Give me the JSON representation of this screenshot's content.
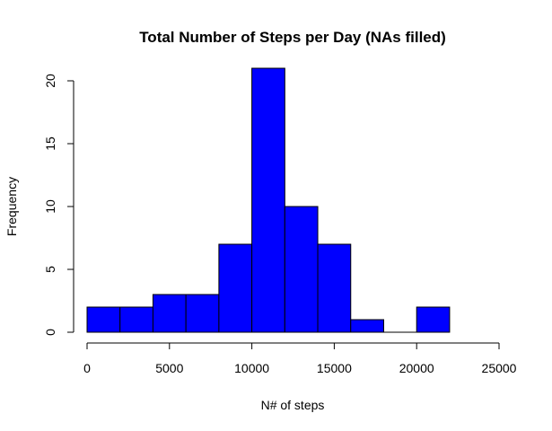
{
  "chart_data": {
    "type": "bar",
    "title": "Total Number of Steps per Day (NAs filled)",
    "xlabel": "N# of steps",
    "ylabel": "Frequency",
    "bar_color": "#0000ff",
    "border_color": "#000000",
    "bins": [
      {
        "x0": 0,
        "x1": 2000,
        "count": 2
      },
      {
        "x0": 2000,
        "x1": 4000,
        "count": 2
      },
      {
        "x0": 4000,
        "x1": 6000,
        "count": 3
      },
      {
        "x0": 6000,
        "x1": 8000,
        "count": 3
      },
      {
        "x0": 8000,
        "x1": 10000,
        "count": 7
      },
      {
        "x0": 10000,
        "x1": 12000,
        "count": 21
      },
      {
        "x0": 12000,
        "x1": 14000,
        "count": 10
      },
      {
        "x0": 14000,
        "x1": 16000,
        "count": 7
      },
      {
        "x0": 16000,
        "x1": 18000,
        "count": 1
      },
      {
        "x0": 18000,
        "x1": 20000,
        "count": 0
      },
      {
        "x0": 20000,
        "x1": 22000,
        "count": 2
      }
    ],
    "xlim": [
      0,
      25000
    ],
    "ylim": [
      0,
      21
    ],
    "x_ticks": [
      0,
      5000,
      10000,
      15000,
      20000,
      25000
    ],
    "x_tick_labels": [
      "0",
      "5000",
      "10000",
      "15000",
      "20000",
      "25000"
    ],
    "y_ticks": [
      0,
      5,
      10,
      15,
      20
    ],
    "y_tick_labels": [
      "0",
      "5",
      "10",
      "15",
      "20"
    ],
    "grid": false,
    "legend": "none"
  }
}
